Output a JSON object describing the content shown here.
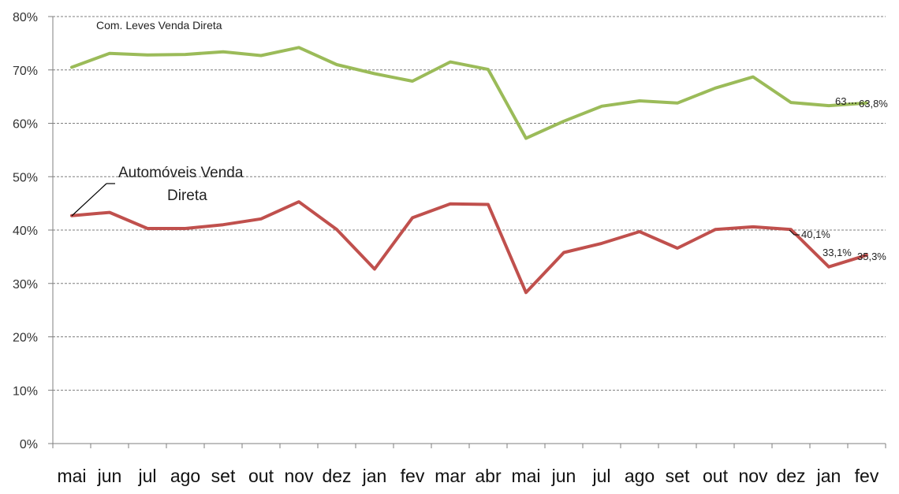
{
  "chart_data": {
    "type": "line",
    "title": "",
    "xlabel": "",
    "ylabel": "",
    "ylim": [
      0,
      80
    ],
    "y_ticks": [
      "0%",
      "10%",
      "20%",
      "30%",
      "40%",
      "50%",
      "60%",
      "70%",
      "80%"
    ],
    "grid": true,
    "grid_style": "dashed",
    "categories": [
      "mai",
      "jun",
      "jul",
      "ago",
      "set",
      "out",
      "nov",
      "dez",
      "jan",
      "fev",
      "mar",
      "abr",
      "mai",
      "jun",
      "jul",
      "ago",
      "set",
      "out",
      "nov",
      "dez",
      "jan",
      "fev"
    ],
    "series": [
      {
        "name": "Com. Leves Venda Direta",
        "color": "#9bbb59",
        "values": [
          70.5,
          73.1,
          72.8,
          72.9,
          73.4,
          72.7,
          74.2,
          71.0,
          69.3,
          67.9,
          71.5,
          70.1,
          57.2,
          60.4,
          63.2,
          64.2,
          63.8,
          66.6,
          68.7,
          63.9,
          63.3,
          63.8
        ],
        "labels": [
          "63",
          "63,8%"
        ]
      },
      {
        "name": "Automóveis Venda Direta",
        "color": "#c0504d",
        "values": [
          42.7,
          43.3,
          40.3,
          40.3,
          41.0,
          42.1,
          45.3,
          40.1,
          32.7,
          42.3,
          44.9,
          44.8,
          28.3,
          35.8,
          37.5,
          39.7,
          36.6,
          40.1,
          40.6,
          40.1,
          33.1,
          35.3
        ],
        "labels": [
          "40,1%",
          "33,1%",
          "35,3%"
        ]
      }
    ]
  }
}
